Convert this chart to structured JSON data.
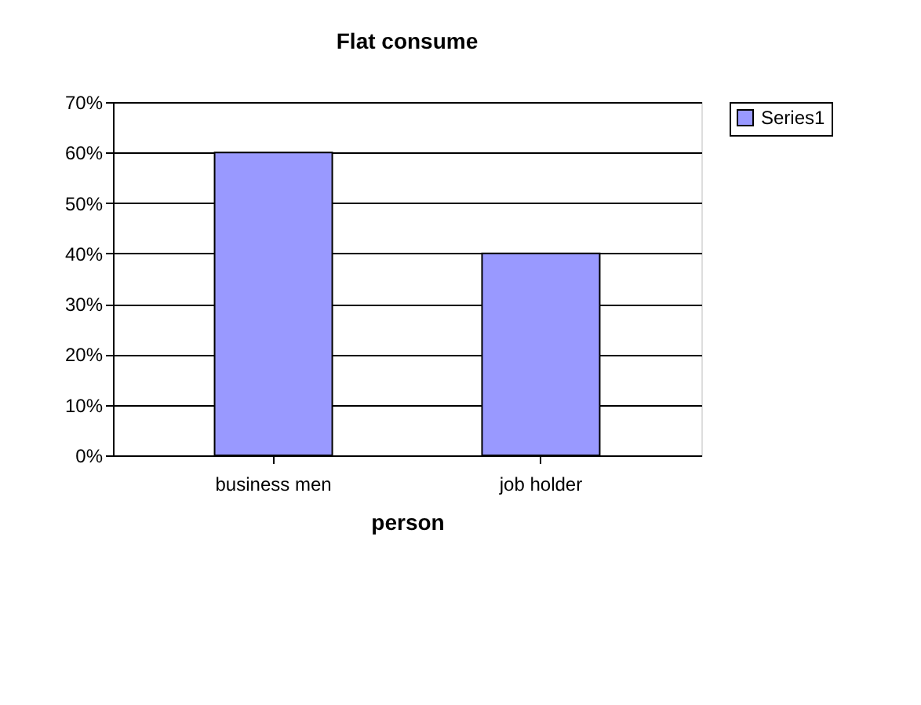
{
  "chart_data": {
    "type": "bar",
    "title": "Flat consume",
    "xlabel": "person",
    "categories": [
      "business men",
      "job holder"
    ],
    "series": [
      {
        "name": "Series1",
        "color": "#9999ff",
        "values": [
          60,
          40
        ]
      }
    ],
    "ylim": [
      0,
      70
    ],
    "yticks": [
      {
        "value": 0,
        "label": "0%"
      },
      {
        "value": 10,
        "label": "10%"
      },
      {
        "value": 20,
        "label": "20%"
      },
      {
        "value": 30,
        "label": "30%"
      },
      {
        "value": 40,
        "label": "40%"
      },
      {
        "value": 50,
        "label": "50%"
      },
      {
        "value": 60,
        "label": "60%"
      },
      {
        "value": 70,
        "label": "70%"
      }
    ],
    "grid": "y",
    "legend": "right"
  }
}
